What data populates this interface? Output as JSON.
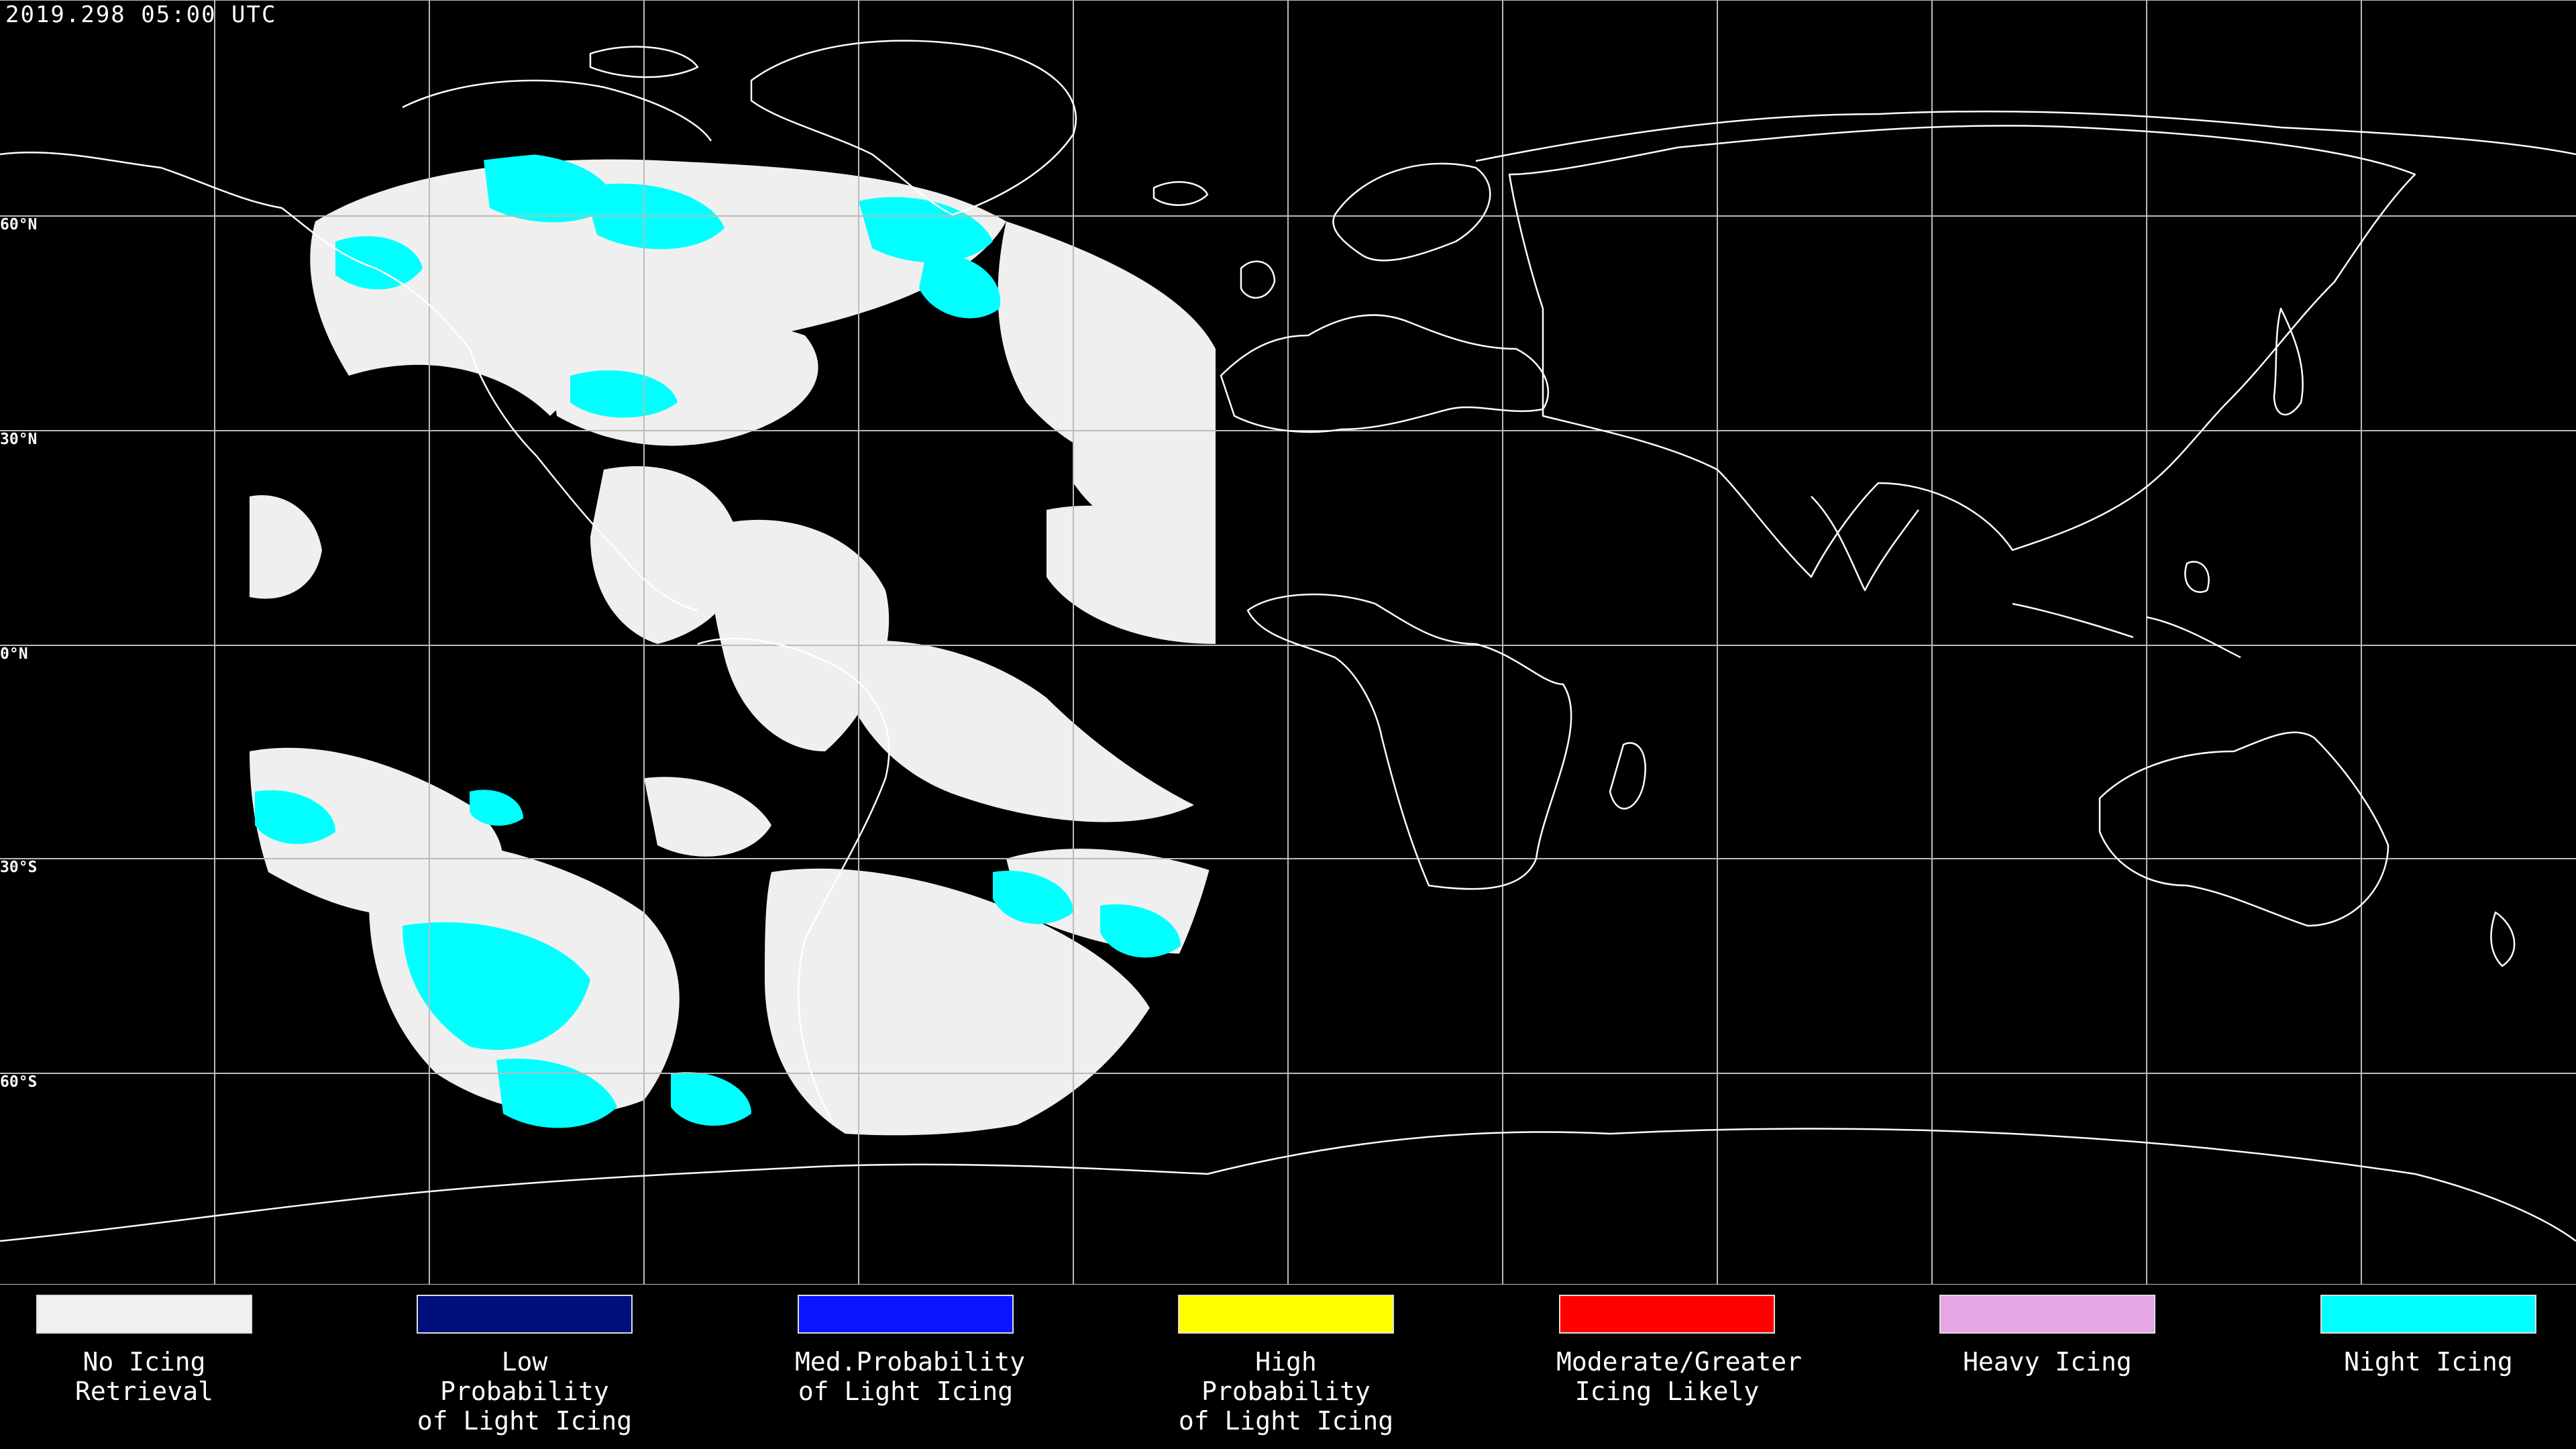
{
  "header": {
    "timestamp": "2019.298 05:00 UTC"
  },
  "map": {
    "lat_labels": [
      "60°N",
      "30°N",
      "0°N",
      "30°S",
      "60°S"
    ],
    "colors": {
      "background": "#000000",
      "grid": "#bbbbbb",
      "coast": "#ffffff"
    }
  },
  "legend": {
    "items": [
      {
        "label": "No Icing\nRetrieval",
        "color": "#f0f0f0"
      },
      {
        "label": "Low Probability\nof Light Icing",
        "color": "#000f7a"
      },
      {
        "label": "Med.Probability\nof Light Icing",
        "color": "#0a14ff"
      },
      {
        "label": "High Probability\nof Light Icing",
        "color": "#ffff00"
      },
      {
        "label": "Moderate/Greater\nIcing Likely",
        "color": "#ff0000"
      },
      {
        "label": "Heavy Icing",
        "color": "#e6a6e6"
      },
      {
        "label": "Night Icing",
        "color": "#00ffff"
      }
    ]
  }
}
